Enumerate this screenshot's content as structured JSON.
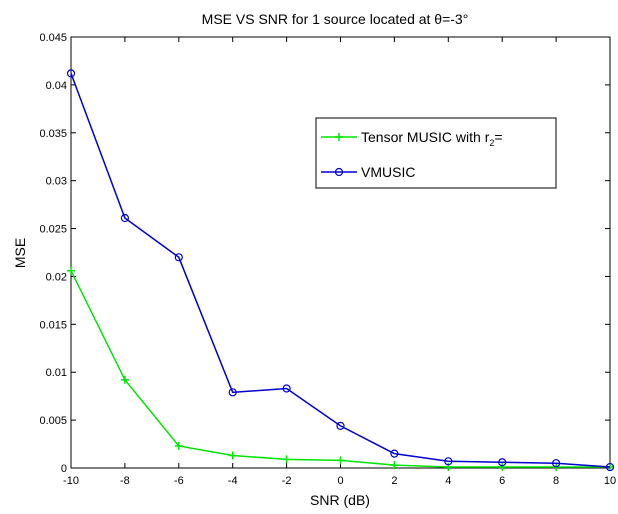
{
  "chart_data": {
    "type": "line",
    "title": "MSE VS SNR for 1 source located at θ=-3°",
    "xlabel": "SNR (dB)",
    "ylabel": "MSE",
    "xlim": [
      -10,
      10
    ],
    "ylim": [
      0,
      0.045
    ],
    "x_ticks": [
      "-10",
      "-8",
      "-6",
      "-4",
      "-2",
      "0",
      "2",
      "4",
      "6",
      "8",
      "10"
    ],
    "y_ticks": [
      "0",
      "0.005",
      "0.01",
      "0.015",
      "0.02",
      "0.025",
      "0.03",
      "0.035",
      "0.04",
      "0.045"
    ],
    "grid": false,
    "legend_position": "upper-right",
    "series": [
      {
        "name": "Tensor MUSIC with r2=",
        "name_main": "Tensor MUSIC with r",
        "name_sub": "2",
        "name_tail": "=",
        "color": "#00e600",
        "marker": "plus",
        "x": [
          -10,
          -8,
          -6,
          -4,
          -2,
          0,
          2,
          4,
          6,
          8,
          10
        ],
        "y": [
          0.0206,
          0.0092,
          0.0023,
          0.0013,
          0.0009,
          0.0008,
          0.0003,
          0.0001,
          0.0001,
          0.0001,
          0.0001
        ]
      },
      {
        "name": "VMUSIC",
        "color": "#0000d0",
        "marker": "circle",
        "x": [
          -10,
          -8,
          -6,
          -4,
          -2,
          0,
          2,
          4,
          6,
          8,
          10
        ],
        "y": [
          0.0412,
          0.0261,
          0.022,
          0.0079,
          0.0083,
          0.0044,
          0.0015,
          0.0007,
          0.0006,
          0.0005,
          0.0001
        ]
      }
    ]
  }
}
